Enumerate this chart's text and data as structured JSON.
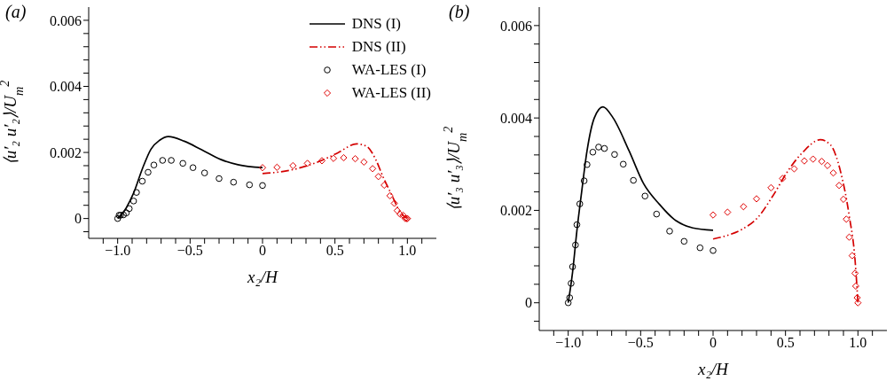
{
  "chart_data": [
    {
      "type": "line",
      "title": "(a)",
      "xlabel": "x₂/H",
      "ylabel": "⟨u′₂ u′₂⟩/U$_{m}$$^{2}$",
      "xlim": [
        -1.2,
        1.2
      ],
      "ylim": [
        -0.0006,
        0.0064
      ],
      "xticks": [
        {
          "value": -1.1,
          "label": null
        },
        {
          "value": -1,
          "label": "−1.0"
        },
        {
          "value": -0.9,
          "label": null
        },
        {
          "value": -0.8,
          "label": null
        },
        {
          "value": -0.7,
          "label": null
        },
        {
          "value": -0.6,
          "label": null
        },
        {
          "value": -0.5,
          "label": "−0.5"
        },
        {
          "value": -0.4,
          "label": null
        },
        {
          "value": -0.3,
          "label": null
        },
        {
          "value": -0.2,
          "label": null
        },
        {
          "value": -0.1,
          "label": null
        },
        {
          "value": 0,
          "label": "0"
        },
        {
          "value": 0.1,
          "label": null
        },
        {
          "value": 0.2,
          "label": null
        },
        {
          "value": 0.3,
          "label": null
        },
        {
          "value": 0.4,
          "label": null
        },
        0.5,
        {
          "value": 0.6,
          "label": null
        },
        {
          "value": 0.7,
          "label": null
        },
        {
          "value": 0.8,
          "label": null
        },
        {
          "value": 0.9,
          "label": null
        },
        {
          "value": 1,
          "label": "1.0"
        },
        {
          "value": 1.1,
          "label": null
        }
      ],
      "yticks": [
        {
          "value": -0.0004,
          "label": null
        },
        {
          "value": 0,
          "label": "0"
        },
        {
          "value": 0.0004,
          "label": null
        },
        {
          "value": 0.0008,
          "label": null
        },
        {
          "value": 0.0012,
          "label": null
        },
        {
          "value": 0.0016,
          "label": null
        },
        0.002,
        {
          "value": 0.0024,
          "label": null
        },
        {
          "value": 0.0028,
          "label": null
        },
        {
          "value": 0.0032,
          "label": null
        },
        {
          "value": 0.0036,
          "label": null
        },
        0.004,
        {
          "value": 0.0044,
          "label": null
        },
        {
          "value": 0.0048,
          "label": null
        },
        {
          "value": 0.0052,
          "label": null
        },
        {
          "value": 0.0056,
          "label": null
        },
        0.006
      ],
      "legend": "top right",
      "grid": false,
      "series": [
        {
          "name": "DNS (I)",
          "type": "line",
          "line_style": "solid",
          "marker": "none",
          "color": "#000000",
          "x": [
            -1.0,
            -0.94,
            -0.89,
            -0.83,
            -0.77,
            -0.71,
            -0.65,
            -0.54,
            -0.42,
            -0.29,
            -0.17,
            0.0
          ],
          "values": [
            0.0,
            0.00033,
            0.00077,
            0.0015,
            0.0021,
            0.00237,
            0.00248,
            0.00234,
            0.00208,
            0.00179,
            0.00163,
            0.00154
          ]
        },
        {
          "name": "DNS (II)",
          "type": "line",
          "line_style": "dashed",
          "marker": "none",
          "color": "#d40000",
          "x": [
            0.0,
            0.1,
            0.21,
            0.31,
            0.42,
            0.52,
            0.65,
            0.72,
            0.78,
            0.83,
            0.9,
            0.95,
            1.0
          ],
          "values": [
            0.00136,
            0.0014,
            0.00148,
            0.0016,
            0.00178,
            0.00199,
            0.00226,
            0.00218,
            0.0018,
            0.00128,
            0.00064,
            0.00019,
            0.0
          ]
        },
        {
          "name": "WA-LES (I)",
          "type": "scatter",
          "marker": "circle",
          "color": "#000000",
          "x": [
            -1.0,
            -0.99,
            -0.98,
            -0.96,
            -0.94,
            -0.92,
            -0.89,
            -0.87,
            -0.83,
            -0.79,
            -0.75,
            -0.69,
            -0.63,
            -0.55,
            -0.48,
            -0.4,
            -0.3,
            -0.2,
            -0.09,
            0.0
          ],
          "values": [
            0.0,
            0.0001,
            0.0001,
            0.00011,
            0.00017,
            0.0003,
            0.00053,
            0.00079,
            0.00113,
            0.0014,
            0.00162,
            0.00176,
            0.00176,
            0.00167,
            0.00154,
            0.00138,
            0.00121,
            0.0011,
            0.00102,
            0.001
          ]
        },
        {
          "name": "WA-LES (II)",
          "type": "scatter",
          "marker": "diamond",
          "color": "#e00000",
          "x": [
            0.0,
            0.1,
            0.21,
            0.31,
            0.41,
            0.49,
            0.56,
            0.64,
            0.7,
            0.76,
            0.8,
            0.84,
            0.88,
            0.91,
            0.93,
            0.95,
            0.97,
            0.985,
            0.995,
            1.0
          ],
          "values": [
            0.00154,
            0.00155,
            0.0016,
            0.00167,
            0.00175,
            0.00182,
            0.00184,
            0.00181,
            0.00171,
            0.00151,
            0.00127,
            0.00101,
            0.00069,
            0.00046,
            0.00024,
            0.00013,
            0.0001,
            0.0,
            0.0,
            0.0
          ]
        }
      ]
    },
    {
      "type": "line",
      "title": "(b)",
      "xlabel": "x₂/H",
      "ylabel": "⟨u′₃ u′₃⟩/U$_{m}$$^{2}$",
      "xlim": [
        -1.2,
        1.2
      ],
      "ylim": [
        -0.0006,
        0.0064
      ],
      "xticks": [
        {
          "value": -1.1,
          "label": null
        },
        {
          "value": -1,
          "label": "−1.0"
        },
        {
          "value": -0.9,
          "label": null
        },
        {
          "value": -0.8,
          "label": null
        },
        {
          "value": -0.7,
          "label": null
        },
        {
          "value": -0.6,
          "label": null
        },
        {
          "value": -0.5,
          "label": "−0.5"
        },
        {
          "value": -0.4,
          "label": null
        },
        {
          "value": -0.3,
          "label": null
        },
        {
          "value": -0.2,
          "label": null
        },
        {
          "value": -0.1,
          "label": null
        },
        {
          "value": 0,
          "label": "0"
        },
        {
          "value": 0.1,
          "label": null
        },
        {
          "value": 0.2,
          "label": null
        },
        {
          "value": 0.3,
          "label": null
        },
        {
          "value": 0.4,
          "label": null
        },
        0.5,
        {
          "value": 0.6,
          "label": null
        },
        {
          "value": 0.7,
          "label": null
        },
        {
          "value": 0.8,
          "label": null
        },
        {
          "value": 0.9,
          "label": null
        },
        {
          "value": 1,
          "label": "1.0"
        },
        {
          "value": 1.1,
          "label": null
        }
      ],
      "yticks": [
        {
          "value": -0.0004,
          "label": null
        },
        {
          "value": 0,
          "label": "0"
        },
        {
          "value": 0.0004,
          "label": null
        },
        {
          "value": 0.0008,
          "label": null
        },
        {
          "value": 0.0012,
          "label": null
        },
        {
          "value": 0.0016,
          "label": null
        },
        0.002,
        {
          "value": 0.0024,
          "label": null
        },
        {
          "value": 0.0028,
          "label": null
        },
        {
          "value": 0.0032,
          "label": null
        },
        {
          "value": 0.0036,
          "label": null
        },
        0.004,
        {
          "value": 0.0044,
          "label": null
        },
        {
          "value": 0.0048,
          "label": null
        },
        {
          "value": 0.0052,
          "label": null
        },
        {
          "value": 0.0056,
          "label": null
        },
        0.006
      ],
      "grid": false,
      "series": [
        {
          "type": "line",
          "line_style": "solid",
          "marker": "none",
          "color": "#000000",
          "x": [
            -1.0,
            -0.97,
            -0.94,
            -0.91,
            -0.87,
            -0.82,
            -0.76,
            -0.69,
            -0.58,
            -0.48,
            -0.37,
            -0.27,
            -0.14,
            0.0
          ],
          "values": [
            0.0,
            0.00066,
            0.00156,
            0.00233,
            0.00329,
            0.004,
            0.00424,
            0.004,
            0.00329,
            0.00258,
            0.00213,
            0.00181,
            0.00162,
            0.00157
          ]
        },
        {
          "type": "line",
          "line_style": "dashed",
          "marker": "none",
          "color": "#d40000",
          "x": [
            0.0,
            0.1,
            0.2,
            0.31,
            0.41,
            0.52,
            0.62,
            0.74,
            0.81,
            0.88,
            0.94,
            0.98,
            1.0
          ],
          "values": [
            0.00138,
            0.00146,
            0.00159,
            0.00185,
            0.0023,
            0.00287,
            0.00326,
            0.00353,
            0.00342,
            0.00284,
            0.00188,
            0.00093,
            0.0
          ]
        },
        {
          "type": "scatter",
          "marker": "circle",
          "color": "#000000",
          "x": [
            -1.0,
            -0.99,
            -0.98,
            -0.97,
            -0.95,
            -0.94,
            -0.92,
            -0.89,
            -0.87,
            -0.83,
            -0.79,
            -0.75,
            -0.68,
            -0.62,
            -0.55,
            -0.47,
            -0.39,
            -0.3,
            -0.2,
            -0.09,
            0.0
          ],
          "values": [
            0.0,
            0.00011,
            0.00042,
            0.00078,
            0.00125,
            0.00169,
            0.00214,
            0.00264,
            0.00299,
            0.00326,
            0.00337,
            0.00334,
            0.00321,
            0.003,
            0.00265,
            0.00231,
            0.00192,
            0.00155,
            0.00133,
            0.00119,
            0.00113
          ]
        },
        {
          "type": "scatter",
          "marker": "diamond",
          "color": "#e00000",
          "x": [
            0.0,
            0.1,
            0.21,
            0.3,
            0.4,
            0.48,
            0.56,
            0.63,
            0.69,
            0.75,
            0.79,
            0.83,
            0.87,
            0.9,
            0.92,
            0.94,
            0.96,
            0.98,
            0.985,
            0.995,
            1.0
          ],
          "values": [
            0.0019,
            0.00196,
            0.00208,
            0.00225,
            0.00249,
            0.00269,
            0.0029,
            0.00307,
            0.00311,
            0.00306,
            0.00297,
            0.00281,
            0.00254,
            0.00224,
            0.00181,
            0.00142,
            0.00102,
            0.00064,
            0.00036,
            0.00011,
            0.0
          ]
        }
      ]
    }
  ]
}
